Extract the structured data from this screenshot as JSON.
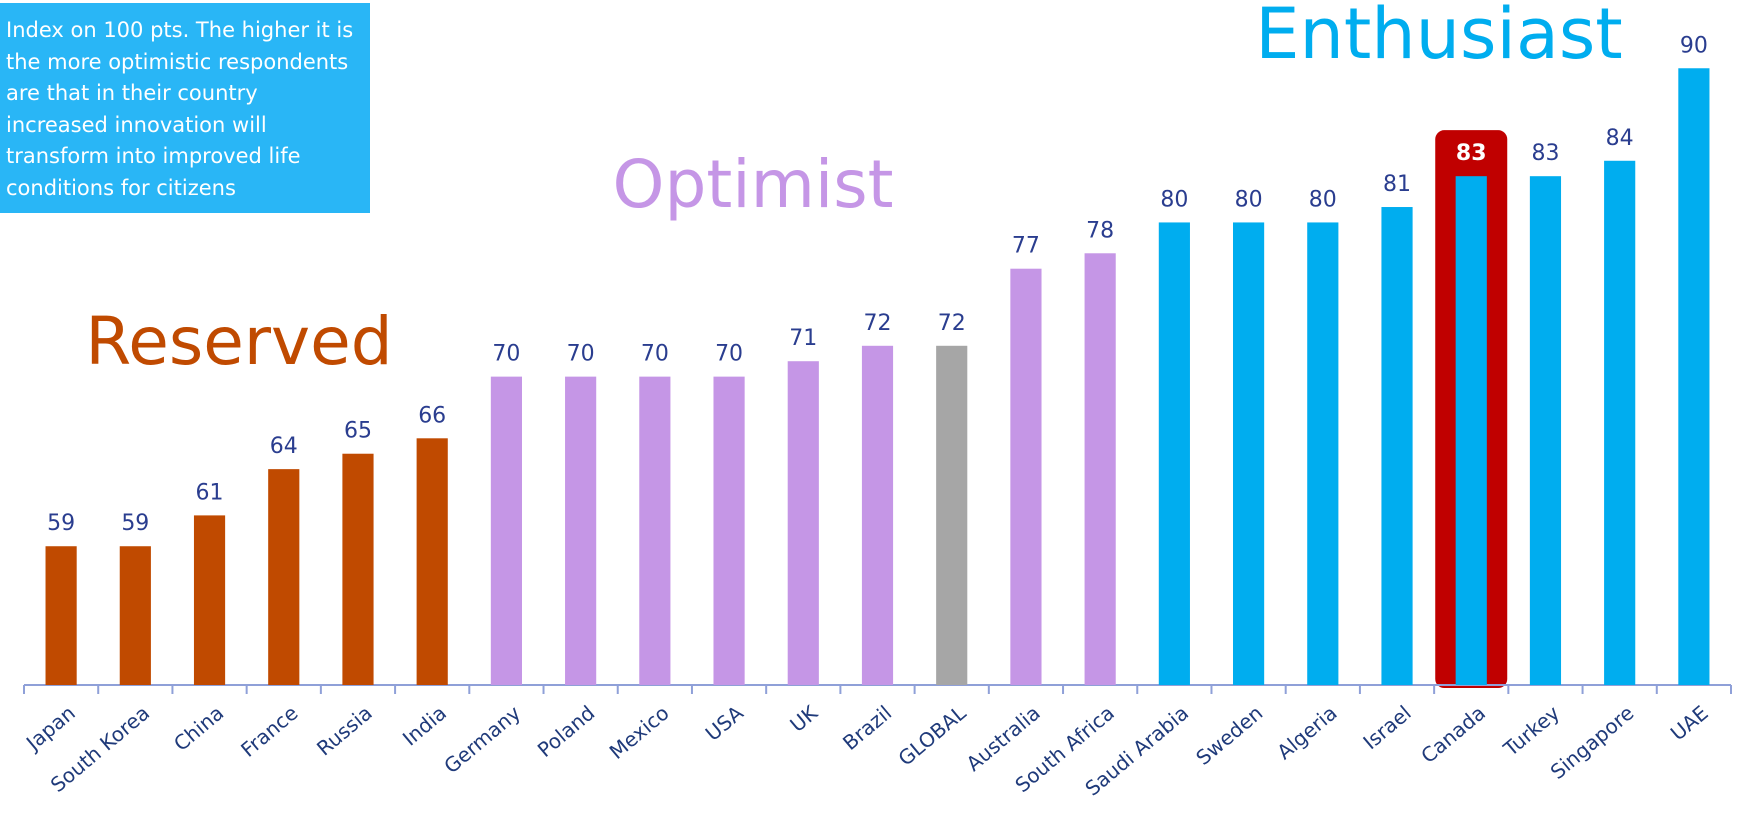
{
  "chart_data": {
    "type": "bar",
    "note": "Index on 100 pts. The higher it is the more  optimistic respondents are that in their country increased innovation will transform into improved life conditions for citizens",
    "annotations": [
      {
        "text": "Reserved",
        "color": "#c04a00"
      },
      {
        "text": "Optimist",
        "color": "#c596e6"
      },
      {
        "text": "Enthusiast",
        "color": "#00adef"
      }
    ],
    "categories": [
      "Japan",
      "South Korea",
      "China",
      "France",
      "Russia",
      "India",
      "Germany",
      "Poland",
      "Mexico",
      "USA",
      "UK",
      "Brazil",
      "GLOBAL",
      "Australia",
      "South Africa",
      "Saudi Arabia",
      "Sweden",
      "Algeria",
      "Israel",
      "Canada",
      "Turkey",
      "Singapore",
      "UAE"
    ],
    "values": [
      59,
      59,
      61,
      64,
      65,
      66,
      70,
      70,
      70,
      70,
      71,
      72,
      72,
      77,
      78,
      80,
      80,
      80,
      81,
      83,
      83,
      84,
      90
    ],
    "colors": [
      "#c04a00",
      "#c04a00",
      "#c04a00",
      "#c04a00",
      "#c04a00",
      "#c04a00",
      "#c596e6",
      "#c596e6",
      "#c596e6",
      "#c596e6",
      "#c596e6",
      "#c596e6",
      "#a6a6a6",
      "#c596e6",
      "#c596e6",
      "#00adef",
      "#00adef",
      "#00adef",
      "#00adef",
      "#00adef",
      "#00adef",
      "#00adef",
      "#00adef"
    ],
    "highlight_index": 19,
    "highlight_color": "#c00000",
    "ylim": [
      50,
      93
    ]
  }
}
